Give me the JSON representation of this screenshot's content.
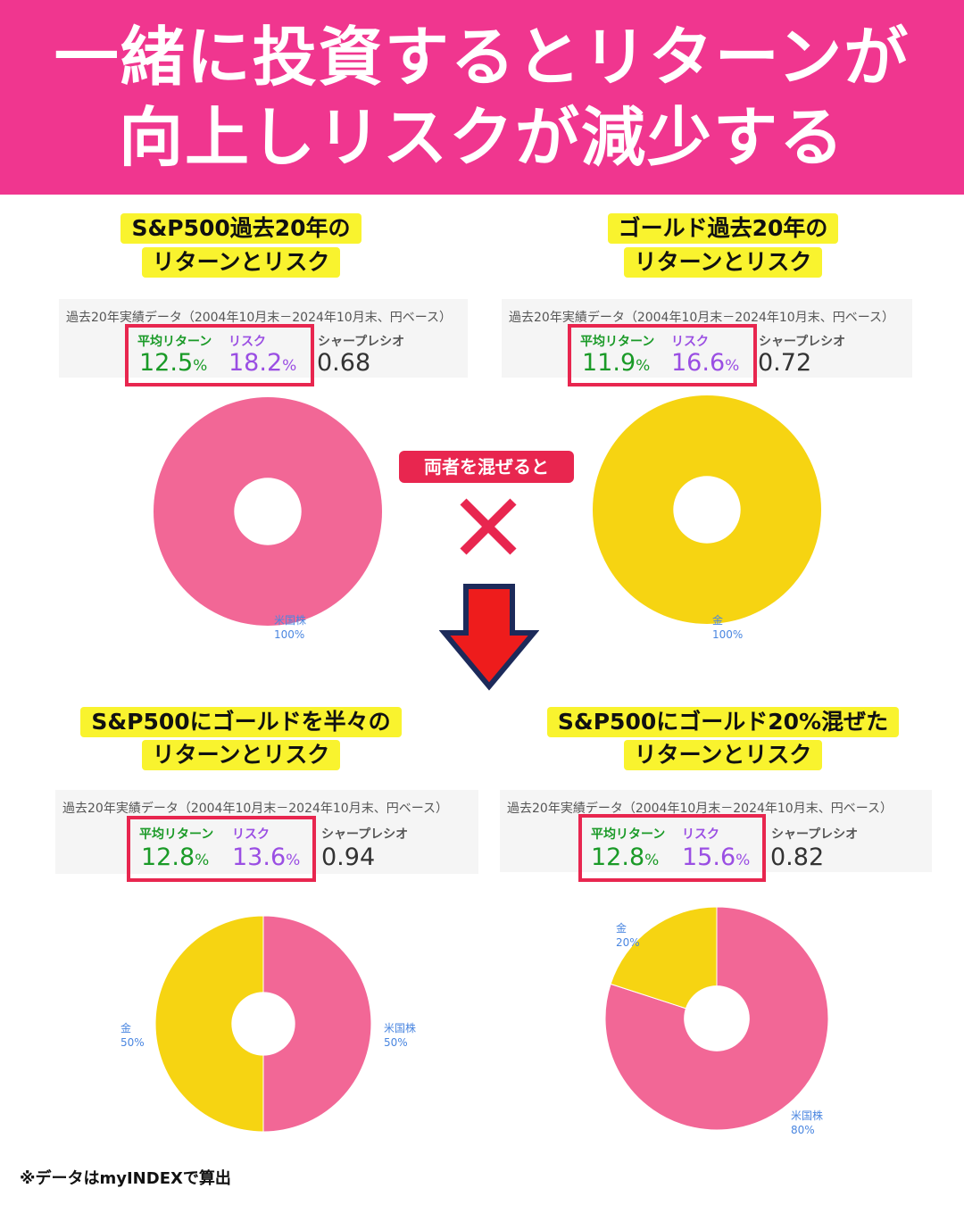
{
  "header": {
    "line1": "一緒に投資するとリターンが",
    "line2": "向上しリスクが減少する"
  },
  "mix_badge": "両者を混ぜると",
  "footnote": "※データはmyINDEXで算出",
  "colors": {
    "header_bg": "#f0368f",
    "highlight": "#f9f32e",
    "box_red": "#e8264f",
    "return_green": "#1a9a27",
    "risk_purple": "#9a4ee3",
    "us_stock_pink": "#f26796",
    "gold_yellow": "#f6d412",
    "arrow_red": "#ee1c1c",
    "arrow_navy": "#1c2a5a"
  },
  "panels": [
    {
      "title_line1": "S&P500過去20年の",
      "title_line2": "リターンとリスク",
      "caption": "過去20年実績データ（2004年10月末－2024年10月末、円ベース）",
      "return_label": "平均リターン",
      "risk_label": "リスク",
      "sharpe_label": "シャープレシオ",
      "return_value": "12.5",
      "risk_value": "18.2",
      "pct": "%",
      "sharpe_value": "0.68"
    },
    {
      "title_line1": "ゴールド過去20年の",
      "title_line2": "リターンとリスク",
      "caption": "過去20年実績データ（2004年10月末－2024年10月末、円ベース）",
      "return_label": "平均リターン",
      "risk_label": "リスク",
      "sharpe_label": "シャープレシオ",
      "return_value": "11.9",
      "risk_value": "16.6",
      "pct": "%",
      "sharpe_value": "0.72"
    },
    {
      "title_line1": "S&P500にゴールドを半々の",
      "title_line2": "リターンとリスク",
      "caption": "過去20年実績データ（2004年10月末－2024年10月末、円ベース）",
      "return_label": "平均リターン",
      "risk_label": "リスク",
      "sharpe_label": "シャープレシオ",
      "return_value": "12.8",
      "risk_value": "13.6",
      "pct": "%",
      "sharpe_value": "0.94"
    },
    {
      "title_line1": "S&P500にゴールド20%混ぜた",
      "title_line2": "リターンとリスク",
      "caption": "過去20年実績データ（2004年10月末－2024年10月末、円ベース）",
      "return_label": "平均リターン",
      "risk_label": "リスク",
      "sharpe_label": "シャープレシオ",
      "return_value": "12.8",
      "risk_value": "15.6",
      "pct": "%",
      "sharpe_value": "0.82"
    }
  ],
  "chart_data": [
    {
      "type": "pie",
      "title": "",
      "categories": [
        "米国株"
      ],
      "values": [
        100
      ],
      "value_labels": [
        "100%"
      ],
      "colors": [
        "#f26796"
      ]
    },
    {
      "type": "pie",
      "title": "",
      "categories": [
        "金"
      ],
      "values": [
        100
      ],
      "value_labels": [
        "100%"
      ],
      "colors": [
        "#f6d412"
      ]
    },
    {
      "type": "pie",
      "title": "",
      "categories": [
        "米国株",
        "金"
      ],
      "values": [
        50,
        50
      ],
      "value_labels": [
        "50%",
        "50%"
      ],
      "colors": [
        "#f26796",
        "#f6d412"
      ]
    },
    {
      "type": "pie",
      "title": "",
      "categories": [
        "米国株",
        "金"
      ],
      "values": [
        80,
        20
      ],
      "value_labels": [
        "80%",
        "20%"
      ],
      "colors": [
        "#f26796",
        "#f6d412"
      ]
    }
  ]
}
